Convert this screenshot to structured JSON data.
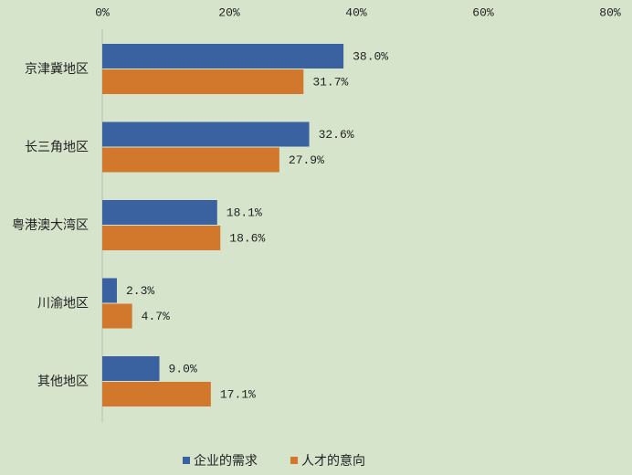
{
  "chart_data": {
    "type": "hbar",
    "categories": [
      "京津冀地区",
      "长三角地区",
      "粤港澳大湾区",
      "川渝地区",
      "其他地区"
    ],
    "series": [
      {
        "name": "企业的需求",
        "color": "#3b62a0",
        "values": [
          38.0,
          32.6,
          18.1,
          2.3,
          9.0
        ],
        "value_labels": [
          "38.0%",
          "32.6%",
          "18.1%",
          "2.3%",
          "9.0%"
        ]
      },
      {
        "name": "人才的意向",
        "color": "#d1782d",
        "values": [
          31.7,
          27.9,
          18.6,
          4.7,
          17.1
        ],
        "value_labels": [
          "31.7%",
          "27.9%",
          "18.6%",
          "4.7%",
          "17.1%"
        ]
      }
    ],
    "xlim": [
      0,
      80
    ],
    "xticks": [
      {
        "value": 0,
        "label": "0%"
      },
      {
        "value": 20,
        "label": "20%"
      },
      {
        "value": 40,
        "label": "40%"
      },
      {
        "value": 60,
        "label": "60%"
      },
      {
        "value": 80,
        "label": "80%"
      }
    ],
    "grid": false,
    "legend": "bottom-left"
  }
}
